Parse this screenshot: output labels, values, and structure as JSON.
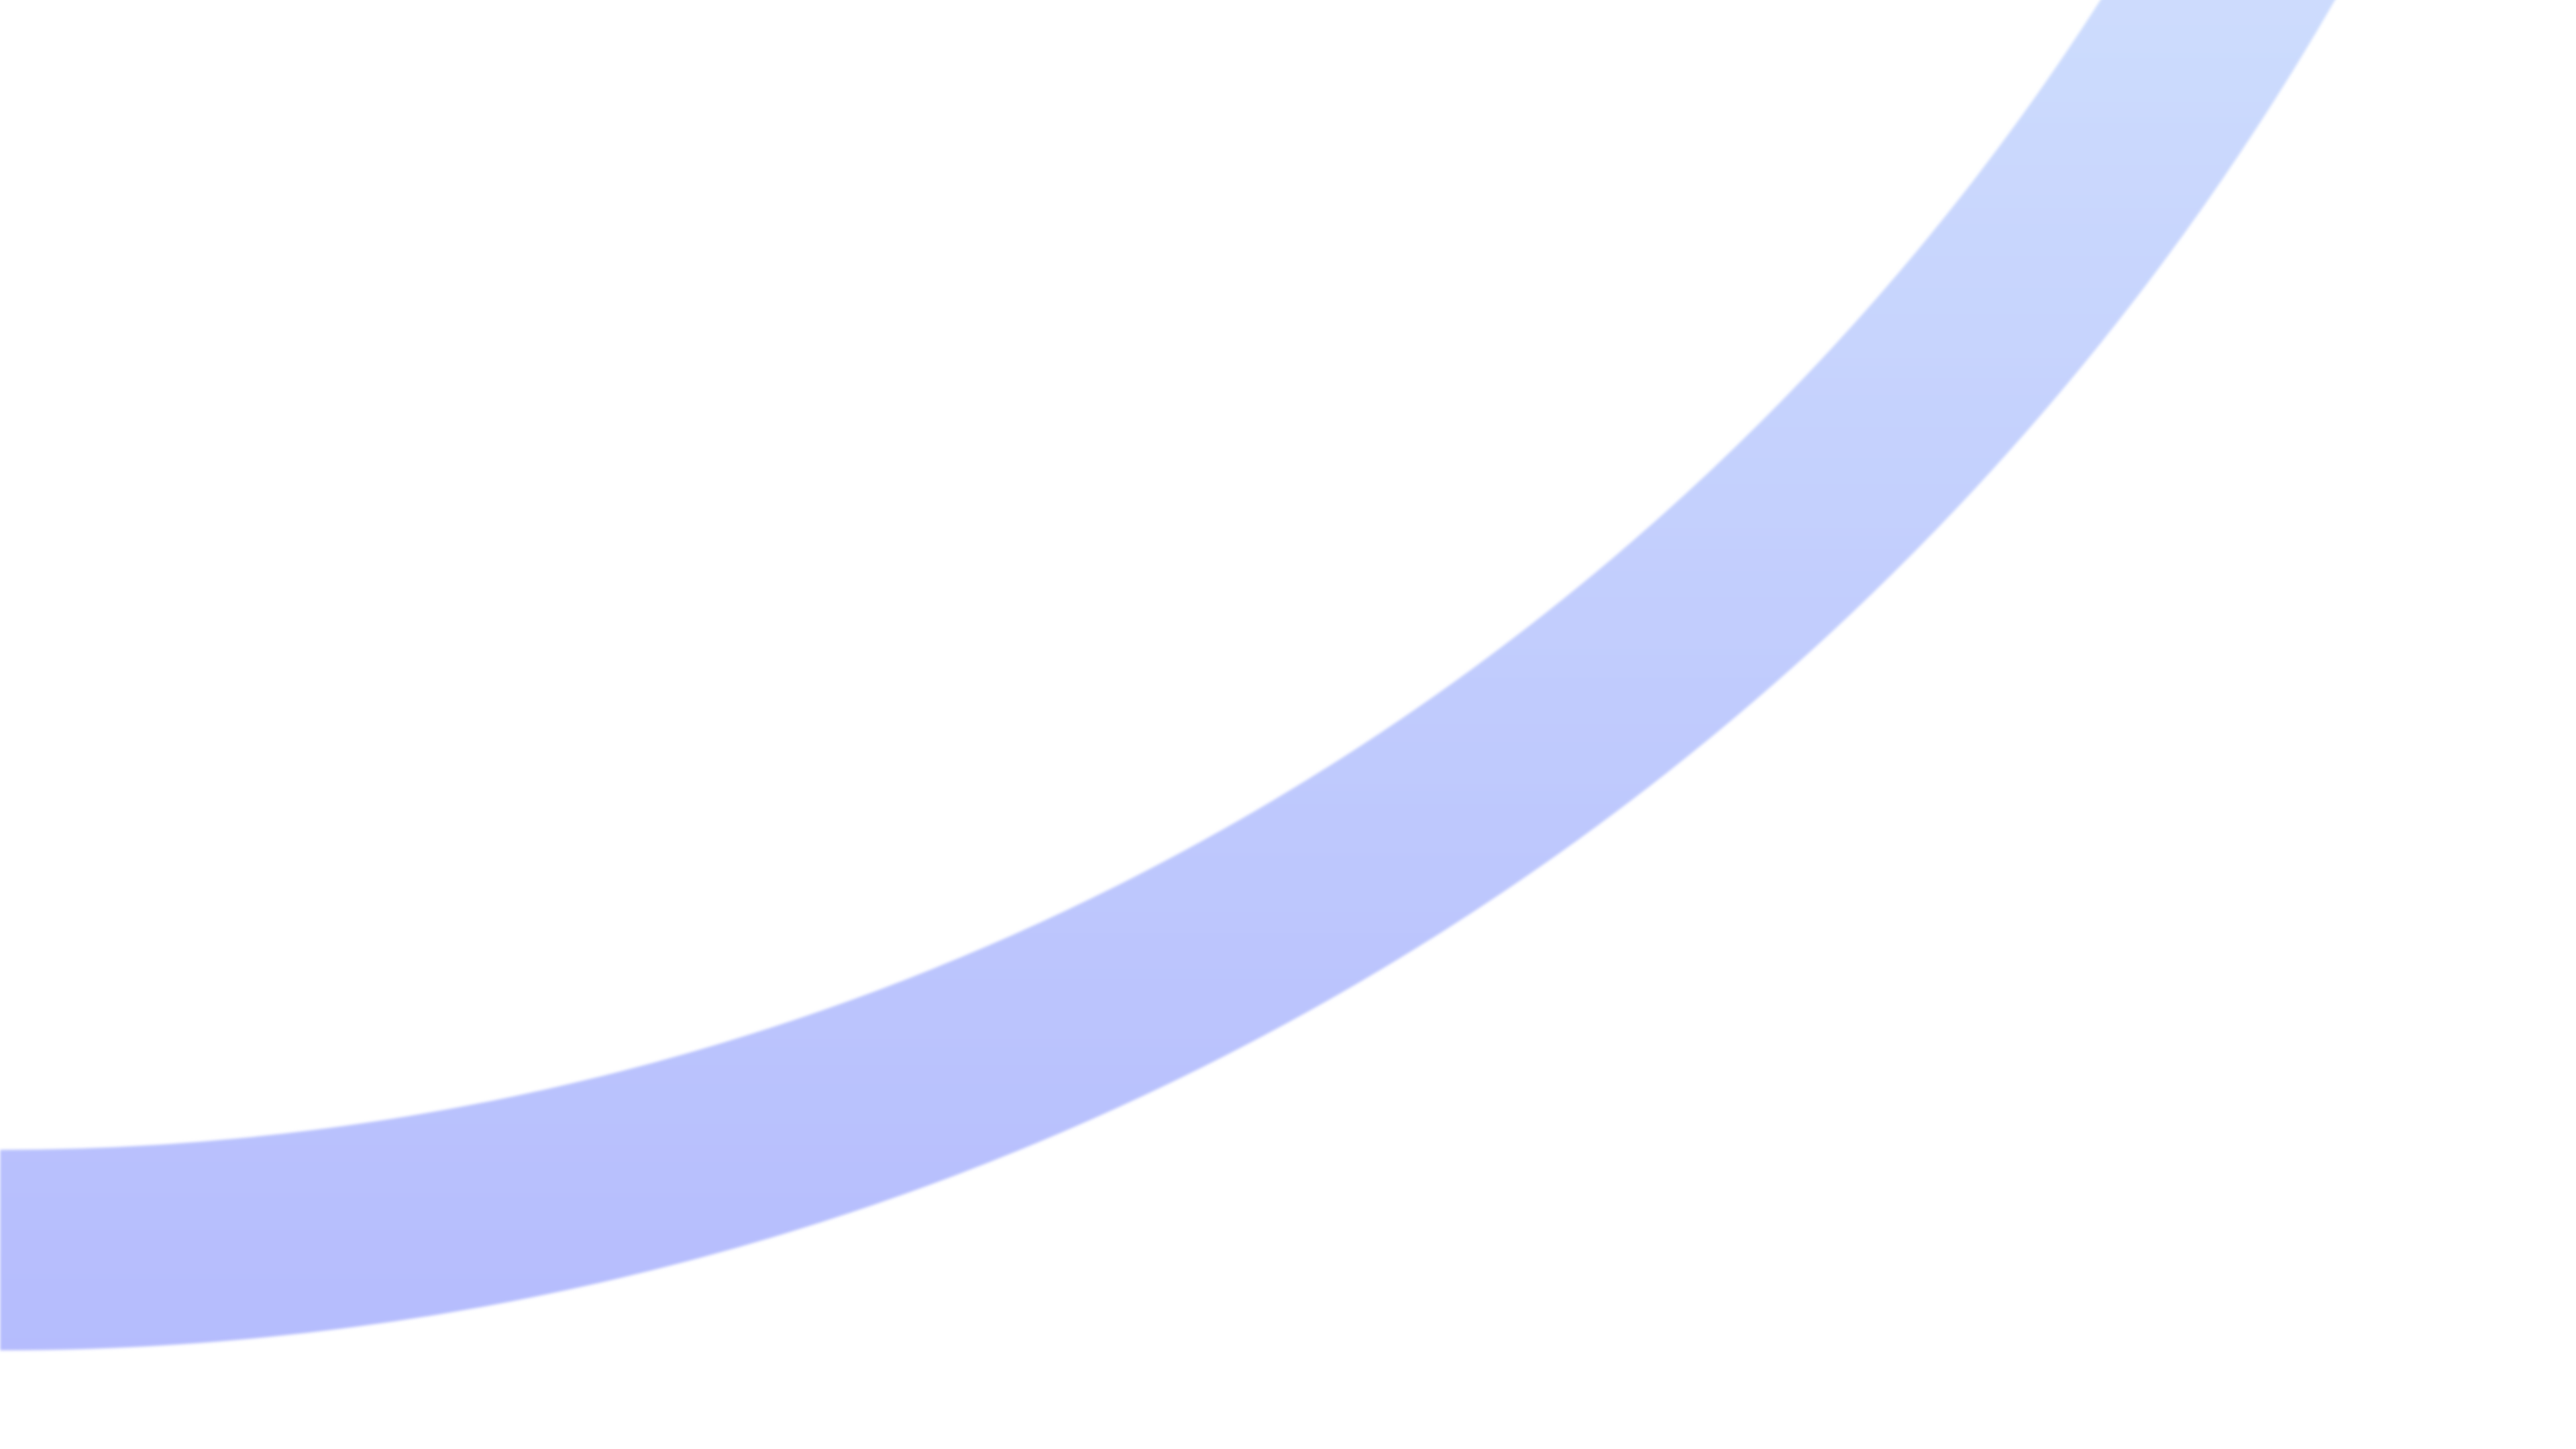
{
  "background": {
    "color": "#ffffff",
    "arc": {
      "shape": "ring-arc",
      "color_top": "#cddcfd",
      "color_bottom": "#b5bcfd"
    }
  }
}
